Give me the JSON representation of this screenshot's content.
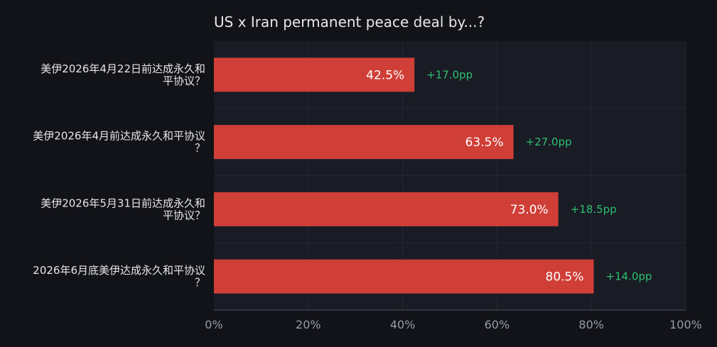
{
  "chart_data": {
    "type": "bar",
    "orientation": "horizontal",
    "title": "US x Iran permanent peace deal by...?",
    "categories": [
      [
        "美伊2026年4月22日前达成永久和",
        "平协议？"
      ],
      [
        "美伊2026年4月前达成永久和平协议",
        "？"
      ],
      [
        "美伊2026年5月31日前达成永久和",
        "平协议？"
      ],
      [
        "2026年6月底美伊达成永久和平协议",
        "？"
      ]
    ],
    "values": [
      42.5,
      63.5,
      73.0,
      80.5
    ],
    "value_labels": [
      "42.5%",
      "63.5%",
      "73.0%",
      "80.5%"
    ],
    "delta_labels": [
      "+17.0pp",
      "+27.0pp",
      "+18.5pp",
      "+14.0pp"
    ],
    "xlim": [
      0,
      100
    ],
    "x_ticks": [
      0,
      20,
      40,
      60,
      80,
      100
    ],
    "x_tick_labels": [
      "0%",
      "20%",
      "40%",
      "60%",
      "80%",
      "100%"
    ],
    "grid": true,
    "colors": {
      "background": "#111318",
      "plot_background": "#191b25",
      "bar": "#d03f37",
      "delta": "#2fbf71",
      "grid": "#242733"
    }
  }
}
